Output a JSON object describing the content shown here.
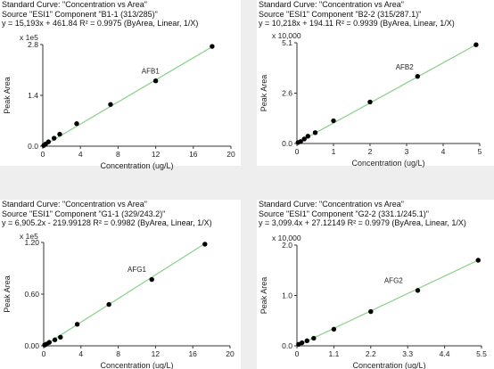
{
  "figure": {
    "panels": [
      {
        "id": "afb1",
        "header": {
          "line1": "Standard Curve: \"Concentration vs Area\"",
          "line2": "Source \"ESI1\" Component \"B1-1 (313/285)\"",
          "line3": "y = 15,193x + 461.84   R² = 0.9975  (ByArea, Linear, 1/X)"
        }
      },
      {
        "id": "afb2",
        "header": {
          "line1": "Standard Curve: \"Concentration vs Area\"",
          "line2": "Source \"ESI1\" Component \"B2-2 (315/287.1)\"",
          "line3": "y = 10,218x + 194.11   R² = 0.9939  (ByArea, Linear, 1/X)"
        }
      },
      {
        "id": "afg1",
        "header": {
          "line1": "Standard Curve: \"Concentration vs Area\"",
          "line2": "Source \"ESI1\" Component \"G1-1 (329/243.2)\"",
          "line3": "y = 6,905.2x - 219.99128   R² = 0.9982  (ByArea, Linear, 1/X)"
        }
      },
      {
        "id": "afg2",
        "header": {
          "line1": "Standard Curve: \"Concentration vs Area\"",
          "line2": "Source \"ESI1\" Component \"G2-2 (331.1/245.1)\"",
          "line3": "y = 3,099.4x + 27.12149   R² = 0.9979  (ByArea, Linear, 1/X)"
        }
      }
    ]
  },
  "chart_data": [
    {
      "type": "scatter",
      "series_label": "AFB1",
      "multiplier": "x 1e5",
      "xlabel": "Concentration (ug/L)",
      "ylabel": "Peak Area",
      "xlim": [
        0,
        20
      ],
      "ylim": [
        0,
        2.8
      ],
      "xticks": [
        "0",
        "4",
        "8",
        "12",
        "16",
        "20"
      ],
      "yticks": [
        "0.0",
        "1.4",
        "2.8"
      ],
      "ytick_values": [
        0,
        1.4,
        2.8
      ],
      "xtick_values": [
        0,
        4,
        8,
        12,
        16,
        20
      ],
      "x": [
        0.1,
        0.3,
        0.6,
        1.2,
        1.8,
        3.6,
        7.2,
        12,
        18
      ],
      "y": [
        0.02,
        0.06,
        0.12,
        0.22,
        0.33,
        0.62,
        1.15,
        1.8,
        2.75
      ],
      "fit": {
        "x": [
          0,
          18
        ],
        "y": [
          0.0,
          2.74
        ]
      },
      "label_pos": [
        10.5,
        2.0
      ],
      "colors": {
        "fit": "#8fd18f",
        "point": "#000000"
      }
    },
    {
      "type": "scatter",
      "series_label": "AFB2",
      "multiplier": "x 10,000",
      "xlabel": "Concentration (ug/L)",
      "ylabel": "Peak Area",
      "xlim": [
        0,
        5
      ],
      "ylim": [
        0,
        5.1
      ],
      "xticks": [
        "0",
        "1",
        "2",
        "3",
        "4",
        "5"
      ],
      "yticks": [
        "0.0",
        "2.6",
        "5.1"
      ],
      "ytick_values": [
        0,
        2.55,
        5.1
      ],
      "xtick_values": [
        0,
        1,
        2,
        3,
        4,
        5
      ],
      "x": [
        0.03,
        0.1,
        0.2,
        0.3,
        0.5,
        1.0,
        2.0,
        3.3,
        4.9
      ],
      "y": [
        0.05,
        0.1,
        0.23,
        0.37,
        0.55,
        1.15,
        2.1,
        3.4,
        5.0
      ],
      "fit": {
        "x": [
          0,
          4.9
        ],
        "y": [
          0.02,
          5.0
        ]
      },
      "label_pos": [
        2.7,
        3.75
      ],
      "colors": {
        "fit": "#8fd18f",
        "point": "#000000"
      }
    },
    {
      "type": "scatter",
      "series_label": "AFG1",
      "multiplier": "x 1e5",
      "xlabel": "Concentration (ug/L)",
      "ylabel": "Peak Area",
      "xlim": [
        0,
        20
      ],
      "ylim": [
        0,
        1.2
      ],
      "xticks": [
        "0",
        "4",
        "8",
        "12",
        "16",
        "20"
      ],
      "yticks": [
        "0.00",
        "0.60",
        "1.20"
      ],
      "ytick_values": [
        0,
        0.6,
        1.2
      ],
      "xtick_values": [
        0,
        4,
        8,
        12,
        16,
        20
      ],
      "x": [
        0.1,
        0.3,
        0.6,
        1.2,
        1.8,
        3.6,
        7.0,
        11.6,
        17.3
      ],
      "y": [
        0.01,
        0.02,
        0.04,
        0.07,
        0.1,
        0.25,
        0.48,
        0.77,
        1.18
      ],
      "fit": {
        "x": [
          0,
          17.5
        ],
        "y": [
          0.0,
          1.2
        ]
      },
      "label_pos": [
        9.0,
        0.86
      ],
      "colors": {
        "fit": "#8fd18f",
        "point": "#000000"
      }
    },
    {
      "type": "scatter",
      "series_label": "AFG2",
      "multiplier": "x 10,000",
      "xlabel": "Concentration (ug/L)",
      "ylabel": "Peak Area",
      "xlim": [
        0,
        5.5
      ],
      "ylim": [
        0,
        2.0
      ],
      "xticks": [
        "0",
        "1.1",
        "2.2",
        "3.3",
        "4.4",
        "5.5"
      ],
      "yticks": [
        "0.0",
        "1.0",
        "2.0"
      ],
      "ytick_values": [
        0,
        1.0,
        2.0
      ],
      "xtick_values": [
        0,
        1.1,
        2.2,
        3.3,
        4.4,
        5.5
      ],
      "x": [
        0.05,
        0.15,
        0.3,
        0.5,
        1.1,
        2.2,
        3.6,
        5.4
      ],
      "y": [
        0.03,
        0.06,
        0.1,
        0.15,
        0.33,
        0.68,
        1.1,
        1.7
      ],
      "fit": {
        "x": [
          0,
          5.4
        ],
        "y": [
          0.0,
          1.7
        ]
      },
      "label_pos": [
        2.6,
        1.25
      ],
      "colors": {
        "fit": "#8fd18f",
        "point": "#000000"
      }
    }
  ]
}
